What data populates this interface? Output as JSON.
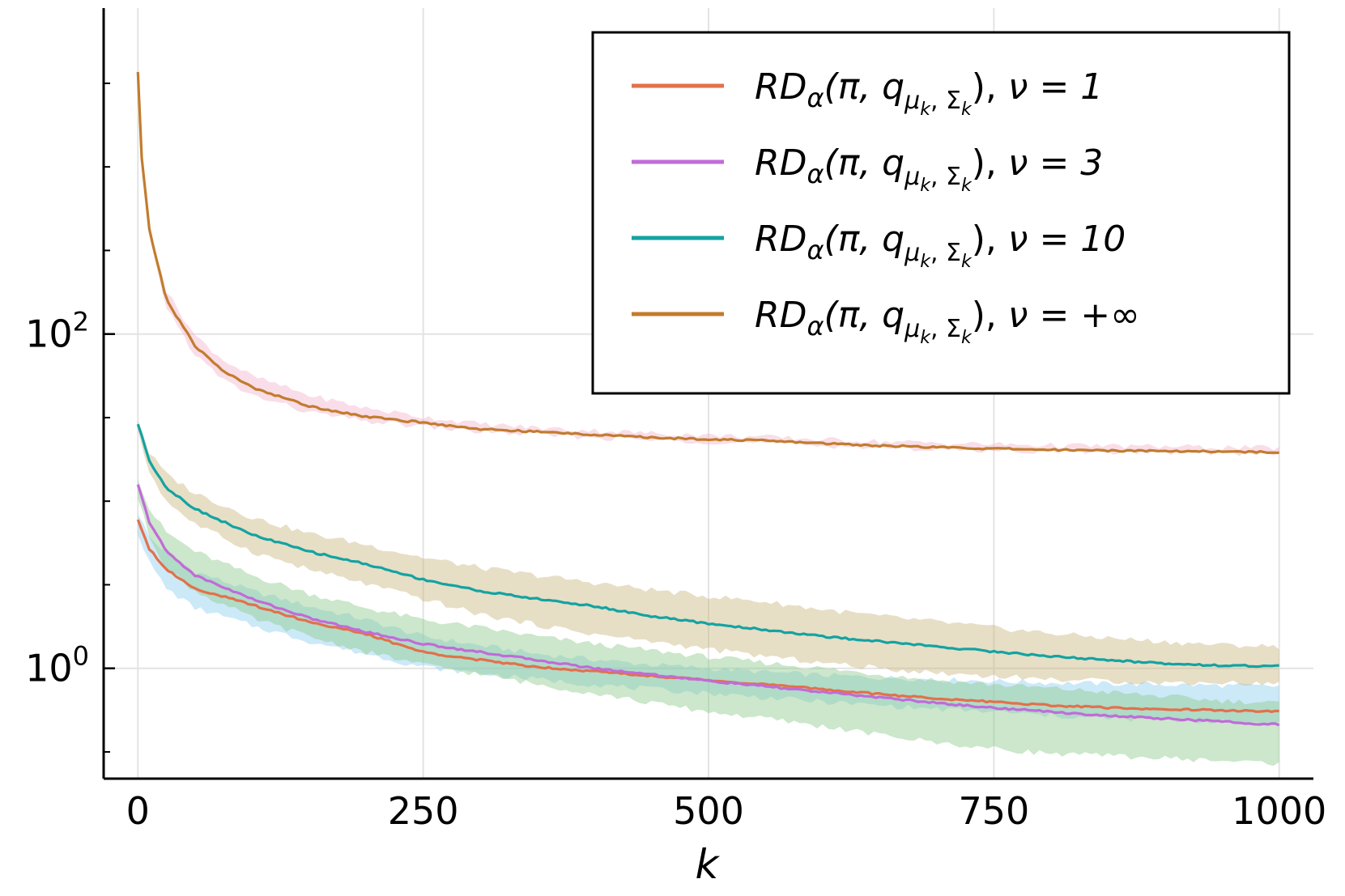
{
  "chart_data": {
    "type": "line",
    "title": "",
    "xlabel": "k",
    "ylabel": "",
    "xlim": [
      -30,
      1030
    ],
    "ylim_log10": [
      -0.66,
      3.95
    ],
    "yscale": "log",
    "grid": true,
    "legend_position": "top-right",
    "x_ticks": [
      {
        "value": 0,
        "label": "0"
      },
      {
        "value": 250,
        "label": "250"
      },
      {
        "value": 500,
        "label": "500"
      },
      {
        "value": 750,
        "label": "750"
      },
      {
        "value": 1000,
        "label": "1000"
      }
    ],
    "y_ticks": [
      {
        "log10": 0,
        "base": "10",
        "exp": "0"
      },
      {
        "log10": 2,
        "base": "10",
        "exp": "2"
      }
    ],
    "series": [
      {
        "name": "RD_alpha(pi, q_mu_k,Sigma_k), nu=1",
        "legend": {
          "main": "RD",
          "sub1": "α",
          "args": "(π, q",
          "sub2": "μ",
          "sub2k": "k",
          "comma": ", Σ",
          "sub3k": "k",
          "close": "), ",
          "nu": "ν = 1"
        },
        "color": "#e2714b",
        "band_color": "#8ecfef",
        "x": [
          0,
          10,
          25,
          50,
          100,
          150,
          200,
          250,
          300,
          350,
          400,
          450,
          500,
          550,
          600,
          650,
          700,
          750,
          800,
          850,
          900,
          950,
          1000
        ],
        "y": [
          7.8,
          5.2,
          3.9,
          3.0,
          2.4,
          1.9,
          1.6,
          1.25,
          1.12,
          1.02,
          0.96,
          0.9,
          0.85,
          0.8,
          0.75,
          0.7,
          0.66,
          0.63,
          0.6,
          0.58,
          0.57,
          0.56,
          0.55
        ],
        "band_low": [
          6.5,
          4.3,
          3.0,
          2.3,
          1.8,
          1.45,
          1.22,
          1.02,
          0.93,
          0.86,
          0.8,
          0.75,
          0.71,
          0.67,
          0.63,
          0.6,
          0.57,
          0.55,
          0.52,
          0.5,
          0.49,
          0.48,
          0.47
        ],
        "band_high": [
          8.5,
          6.1,
          4.9,
          3.8,
          2.9,
          2.35,
          1.95,
          1.55,
          1.37,
          1.22,
          1.13,
          1.05,
          1.0,
          0.95,
          0.91,
          0.88,
          0.86,
          0.84,
          0.82,
          0.81,
          0.8,
          0.79,
          0.78
        ]
      },
      {
        "name": "RD_alpha(pi, q_mu_k,Sigma_k), nu=3",
        "legend": {
          "main": "RD",
          "sub1": "α",
          "args": "(π, q",
          "sub2": "μ",
          "sub2k": "k",
          "comma": ", Σ",
          "sub3k": "k",
          "close": "), ",
          "nu": "ν = 3"
        },
        "color": "#c16bd8",
        "band_color": "#8ec98b",
        "x": [
          0,
          10,
          25,
          50,
          100,
          150,
          200,
          250,
          300,
          350,
          400,
          450,
          500,
          550,
          600,
          650,
          700,
          750,
          800,
          850,
          900,
          950,
          1000
        ],
        "y": [
          12.5,
          7.5,
          5.0,
          3.6,
          2.6,
          2.0,
          1.65,
          1.4,
          1.25,
          1.12,
          1.0,
          0.92,
          0.84,
          0.78,
          0.72,
          0.67,
          0.62,
          0.58,
          0.55,
          0.52,
          0.5,
          0.48,
          0.46
        ],
        "band_low": [
          10.5,
          6.2,
          4.0,
          2.9,
          2.0,
          1.55,
          1.25,
          1.05,
          0.92,
          0.8,
          0.71,
          0.62,
          0.55,
          0.5,
          0.45,
          0.4,
          0.36,
          0.33,
          0.31,
          0.3,
          0.29,
          0.28,
          0.27
        ],
        "band_high": [
          14.0,
          9.0,
          6.5,
          5.0,
          3.6,
          2.8,
          2.3,
          1.95,
          1.75,
          1.55,
          1.4,
          1.28,
          1.17,
          1.08,
          1.0,
          0.92,
          0.85,
          0.8,
          0.76,
          0.72,
          0.68,
          0.64,
          0.62
        ]
      },
      {
        "name": "RD_alpha(pi, q_mu_k,Sigma_k), nu=10",
        "legend": {
          "main": "RD",
          "sub1": "α",
          "args": "(π, q",
          "sub2": "μ",
          "sub2k": "k",
          "comma": ", Σ",
          "sub3k": "k",
          "close": "), ",
          "nu": "ν = 10"
        },
        "color": "#13a3a1",
        "band_color": "#c9b680",
        "x": [
          0,
          10,
          25,
          50,
          100,
          150,
          200,
          250,
          300,
          350,
          400,
          450,
          500,
          550,
          600,
          650,
          700,
          750,
          800,
          850,
          900,
          950,
          1000
        ],
        "y": [
          29.0,
          17.5,
          12.0,
          9.0,
          6.3,
          5.0,
          4.2,
          3.4,
          2.9,
          2.6,
          2.35,
          2.05,
          1.85,
          1.7,
          1.55,
          1.45,
          1.35,
          1.26,
          1.18,
          1.12,
          1.07,
          1.04,
          1.03
        ],
        "band_low": [
          26.0,
          15.0,
          10.0,
          7.3,
          5.0,
          3.9,
          3.2,
          2.6,
          2.1,
          1.82,
          1.6,
          1.45,
          1.3,
          1.18,
          1.08,
          1.0,
          0.94,
          0.9,
          0.86,
          0.84,
          0.82,
          0.82,
          0.81
        ],
        "band_high": [
          31.0,
          19.5,
          14.5,
          11.2,
          8.0,
          6.4,
          5.5,
          4.6,
          4.0,
          3.6,
          3.25,
          2.95,
          2.7,
          2.5,
          2.25,
          2.05,
          1.9,
          1.75,
          1.62,
          1.52,
          1.44,
          1.38,
          1.35
        ]
      },
      {
        "name": "RD_alpha(pi, q_mu_k,Sigma_k), nu=+inf",
        "legend": {
          "main": "RD",
          "sub1": "α",
          "args": "(π, q",
          "sub2": "μ",
          "sub2k": "k",
          "comma": ", Σ",
          "sub3k": "k",
          "close": "), ",
          "nu": "ν = +∞"
        },
        "color": "#c27c2d",
        "band_color": "#f2b4cf",
        "x": [
          0,
          3,
          10,
          25,
          50,
          75,
          100,
          150,
          200,
          250,
          300,
          350,
          400,
          450,
          500,
          550,
          600,
          650,
          700,
          750,
          800,
          850,
          900,
          950,
          1000
        ],
        "y": [
          3700,
          1200,
          420,
          160,
          85,
          60,
          48,
          37,
          32,
          29.5,
          27,
          26,
          25,
          24,
          23.5,
          23,
          22.2,
          21.5,
          21,
          20.6,
          20.3,
          20.1,
          20.0,
          19.8,
          19.6
        ],
        "band_low": [
          3500,
          1100,
          380,
          145,
          75,
          53,
          43,
          34,
          30,
          28,
          26,
          25,
          24,
          23.2,
          22.7,
          22.2,
          21.5,
          20.9,
          20.5,
          20.1,
          19.9,
          19.7,
          19.6,
          19.4,
          19.2
        ],
        "band_high": [
          3900,
          1300,
          460,
          180,
          98,
          70,
          56,
          43,
          36,
          32,
          29,
          27.5,
          26.5,
          25.5,
          24.8,
          24.2,
          23.4,
          22.8,
          22.3,
          21.9,
          21.6,
          21.4,
          21.2,
          21.0,
          20.8
        ],
        "extra_band_at_start": {
          "x": [
            3,
            25
          ],
          "y_low": [
            900,
            130
          ],
          "y_high": [
            1500,
            200
          ]
        }
      }
    ]
  }
}
